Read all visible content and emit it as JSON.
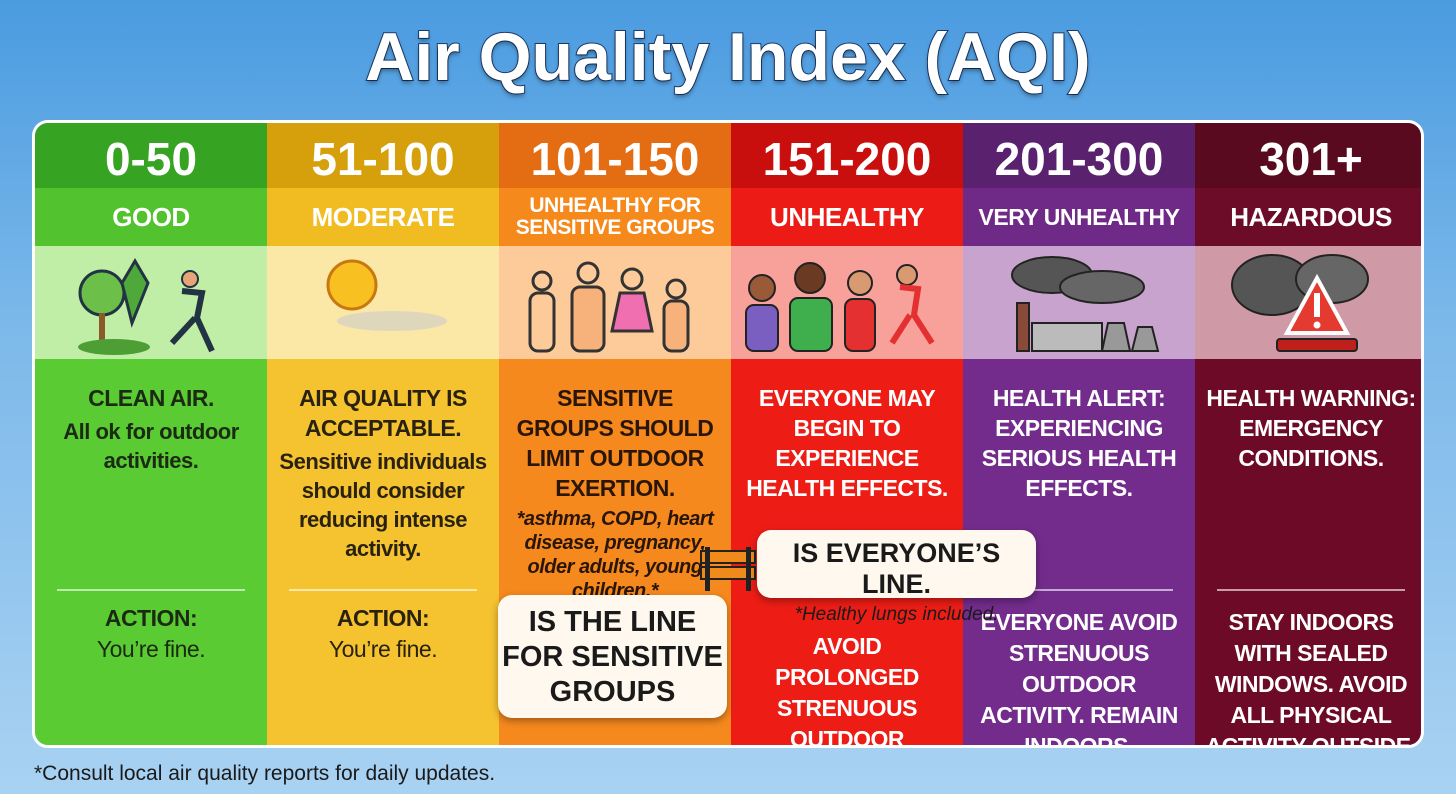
{
  "title": "Air Quality Index (AQI)",
  "columns": [
    {
      "range": "0-50",
      "level": "GOOD",
      "headline": "CLEAN AIR.",
      "detail": "All ok for outdoor activities.",
      "action_label": "ACTION:",
      "action": "You’re fine."
    },
    {
      "range": "51-100",
      "level": "MODERATE",
      "headline": "AIR QUALITY IS ACCEPTABLE.",
      "detail": "Sensitive individuals should consider reducing intense activity.",
      "action_label": "ACTION:",
      "action": "You’re fine."
    },
    {
      "range": "101-150",
      "level": "UNHEALTHY FOR SENSITIVE GROUPS",
      "headline": "SENSITIVE GROUPS SHOULD LIMIT OUTDOOR EXERTION.",
      "detail": "*asthma, COPD, heart disease, pregnancy, older adults, young children.*"
    },
    {
      "range": "151-200",
      "level": "UNHEALTHY",
      "headline": "EVERYONE MAY BEGIN TO EXPERIENCE HEALTH EFFECTS.",
      "action": "AVOID PROLONGED STRENUOUS OUTDOOR ACTIVITY."
    },
    {
      "range": "201-300",
      "level": "VERY UNHEALTHY",
      "headline": "HEALTH ALERT: EXPERIENCING SERIOUS HEALTH EFFECTS.",
      "action": "EVERYONE AVOID STRENUOUS OUTDOOR ACTIVITY. REMAIN INDOORS."
    },
    {
      "range": "301+",
      "level": "HAZARDOUS",
      "headline": "HEALTH WARNING: EMERGENCY CONDITIONS.",
      "action": "STAY INDOORS WITH SEALED WINDOWS. AVOID ALL PHYSICAL ACTIVITY OUTSIDE."
    }
  ],
  "callouts": {
    "sensitive": "IS THE LINE FOR SENSITIVE GROUPS",
    "everyone": "IS EVERYONE’S LINE.",
    "everyone_note": "*Healthy lungs included."
  },
  "footnote": "*Consult local air quality reports for daily updates."
}
